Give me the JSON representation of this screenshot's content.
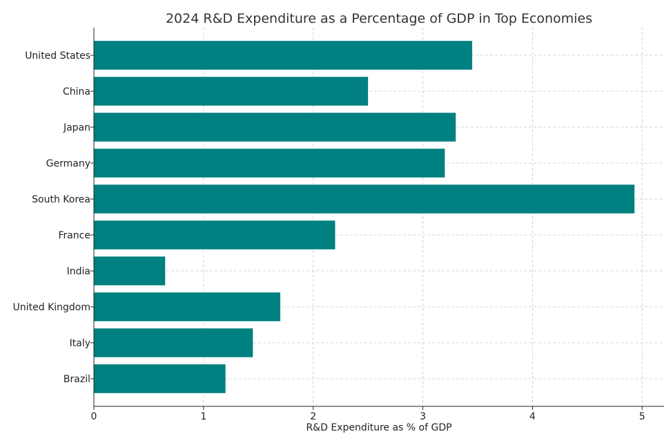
{
  "chart_data": {
    "type": "bar",
    "orientation": "horizontal",
    "title": "2024 R&D Expenditure as a Percentage of GDP in Top Economies",
    "xlabel": "R&D Expenditure as % of GDP",
    "ylabel": "",
    "categories": [
      "United States",
      "China",
      "Japan",
      "Germany",
      "South Korea",
      "France",
      "India",
      "United Kingdom",
      "Italy",
      "Brazil"
    ],
    "values": [
      3.45,
      2.5,
      3.3,
      3.2,
      4.93,
      2.2,
      0.65,
      1.7,
      1.45,
      1.2
    ],
    "xlim": [
      0,
      5.2
    ],
    "xticks": [
      0,
      1,
      2,
      3,
      4,
      5
    ],
    "grid": true,
    "bar_color": "#008080"
  }
}
